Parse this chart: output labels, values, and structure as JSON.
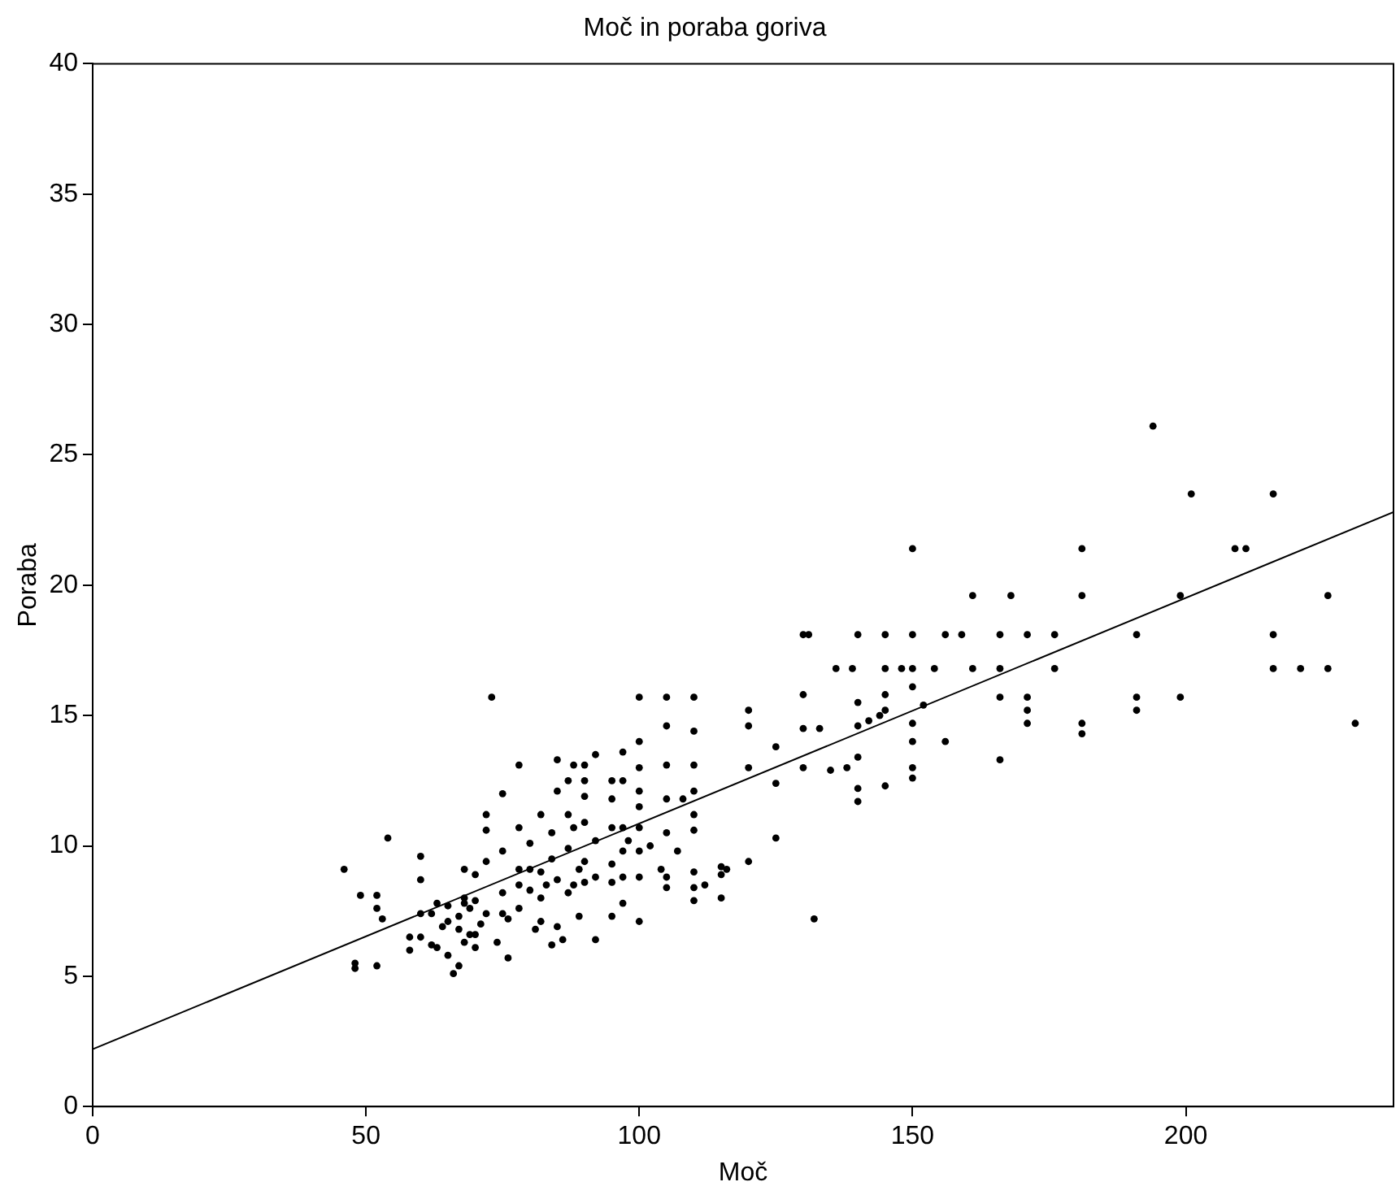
{
  "chart_data": {
    "type": "scatter",
    "title": "Moč in poraba goriva",
    "xlabel": "Moč",
    "ylabel": "Poraba",
    "xlim": [
      0,
      238
    ],
    "xticks": [
      0,
      50,
      100,
      150,
      200
    ],
    "ylim": [
      0,
      40
    ],
    "yticks": [
      0,
      5,
      10,
      15,
      20,
      25,
      30,
      35,
      40
    ],
    "grid": false,
    "legend": false,
    "series": [
      {
        "color": "#000000",
        "marker": "circle",
        "x": [
          46,
          48,
          48,
          49,
          52,
          52,
          52,
          53,
          54,
          58,
          58,
          60,
          60,
          60,
          60,
          62,
          62,
          63,
          63,
          64,
          65,
          65,
          65,
          66,
          67,
          67,
          67,
          68,
          68,
          68,
          68,
          69,
          69,
          70,
          70,
          70,
          70,
          71,
          72,
          72,
          72,
          72,
          73,
          74,
          75,
          75,
          75,
          75,
          76,
          76,
          78,
          78,
          78,
          78,
          78,
          80,
          80,
          80,
          81,
          82,
          82,
          82,
          82,
          83,
          84,
          84,
          84,
          85,
          85,
          85,
          85,
          86,
          87,
          87,
          87,
          87,
          88,
          88,
          88,
          89,
          89,
          90,
          90,
          90,
          90,
          90,
          90,
          92,
          92,
          92,
          92,
          95,
          95,
          95,
          95,
          95,
          95,
          97,
          97,
          97,
          97,
          97,
          97,
          98,
          100,
          100,
          100,
          100,
          100,
          100,
          100,
          100,
          100,
          102,
          104,
          105,
          105,
          105,
          105,
          105,
          105,
          105,
          107,
          108,
          110,
          110,
          110,
          110,
          110,
          110,
          110,
          110,
          110,
          112,
          115,
          115,
          115,
          116,
          120,
          120,
          120,
          120,
          125,
          125,
          125,
          130,
          130,
          130,
          130,
          131,
          132,
          133,
          135,
          136,
          138,
          139,
          140,
          140,
          140,
          140,
          140,
          140,
          142,
          144,
          145,
          145,
          145,
          145,
          145,
          148,
          150,
          150,
          150,
          150,
          150,
          150,
          150,
          150,
          152,
          154,
          156,
          156,
          159,
          161,
          161,
          166,
          166,
          166,
          166,
          168,
          171,
          171,
          171,
          171,
          176,
          176,
          181,
          181,
          181,
          181,
          191,
          191,
          191,
          194,
          199,
          199,
          201,
          209,
          211,
          216,
          216,
          216,
          221,
          226,
          226,
          231
        ],
        "values": [
          9.1,
          5.5,
          5.3,
          8.1,
          8.1,
          7.6,
          5.4,
          7.2,
          10.3,
          6.0,
          6.5,
          6.5,
          7.4,
          8.7,
          9.6,
          6.2,
          7.4,
          7.8,
          6.1,
          6.9,
          5.8,
          7.1,
          7.7,
          5.1,
          5.4,
          6.8,
          7.3,
          6.3,
          7.8,
          8.0,
          9.1,
          6.6,
          7.6,
          6.6,
          7.9,
          8.9,
          6.1,
          7.0,
          7.4,
          9.4,
          10.6,
          11.2,
          15.7,
          6.3,
          7.4,
          8.2,
          9.8,
          12.0,
          5.7,
          7.2,
          7.6,
          8.5,
          9.1,
          10.7,
          13.1,
          8.3,
          9.1,
          10.1,
          6.8,
          7.1,
          8.0,
          9.0,
          11.2,
          8.5,
          6.2,
          9.5,
          10.5,
          6.9,
          8.7,
          12.1,
          13.3,
          6.4,
          8.2,
          9.9,
          11.2,
          12.5,
          8.5,
          10.7,
          13.1,
          7.3,
          9.1,
          8.6,
          9.4,
          10.9,
          11.9,
          12.5,
          13.1,
          6.4,
          8.8,
          10.2,
          13.5,
          7.3,
          8.6,
          9.3,
          10.7,
          11.8,
          12.5,
          7.8,
          8.8,
          9.8,
          10.7,
          12.5,
          13.6,
          10.2,
          7.1,
          8.8,
          9.8,
          10.7,
          11.5,
          12.1,
          13.0,
          14.0,
          15.7,
          10.0,
          9.1,
          8.4,
          8.8,
          10.5,
          11.8,
          13.1,
          14.6,
          15.7,
          9.8,
          11.8,
          7.9,
          8.4,
          9.0,
          10.6,
          11.2,
          12.1,
          13.1,
          14.4,
          15.7,
          8.5,
          8.0,
          8.9,
          9.2,
          9.1,
          9.4,
          13.0,
          14.6,
          15.2,
          10.3,
          12.4,
          13.8,
          13.0,
          14.5,
          15.8,
          18.1,
          18.1,
          7.2,
          14.5,
          12.9,
          16.8,
          13.0,
          16.8,
          11.7,
          12.2,
          13.4,
          14.6,
          15.5,
          18.1,
          14.8,
          15.0,
          12.3,
          15.2,
          15.8,
          16.8,
          18.1,
          16.8,
          12.6,
          13.0,
          14.0,
          14.7,
          16.1,
          16.8,
          18.1,
          21.4,
          15.4,
          16.8,
          18.1,
          14.0,
          18.1,
          16.8,
          19.6,
          18.1,
          16.8,
          15.7,
          13.3,
          19.6,
          18.1,
          15.7,
          15.2,
          14.7,
          18.1,
          16.8,
          21.4,
          19.6,
          14.7,
          14.3,
          18.1,
          15.7,
          15.2,
          26.1,
          19.6,
          15.7,
          23.5,
          21.4,
          21.4,
          23.5,
          18.1,
          16.8,
          16.8,
          19.6,
          16.8,
          14.7
        ]
      },
      {
        "type": "line",
        "marker": "none",
        "color": "#000000",
        "x": [
          0,
          238
        ],
        "values": [
          2.2,
          22.8
        ]
      }
    ]
  }
}
